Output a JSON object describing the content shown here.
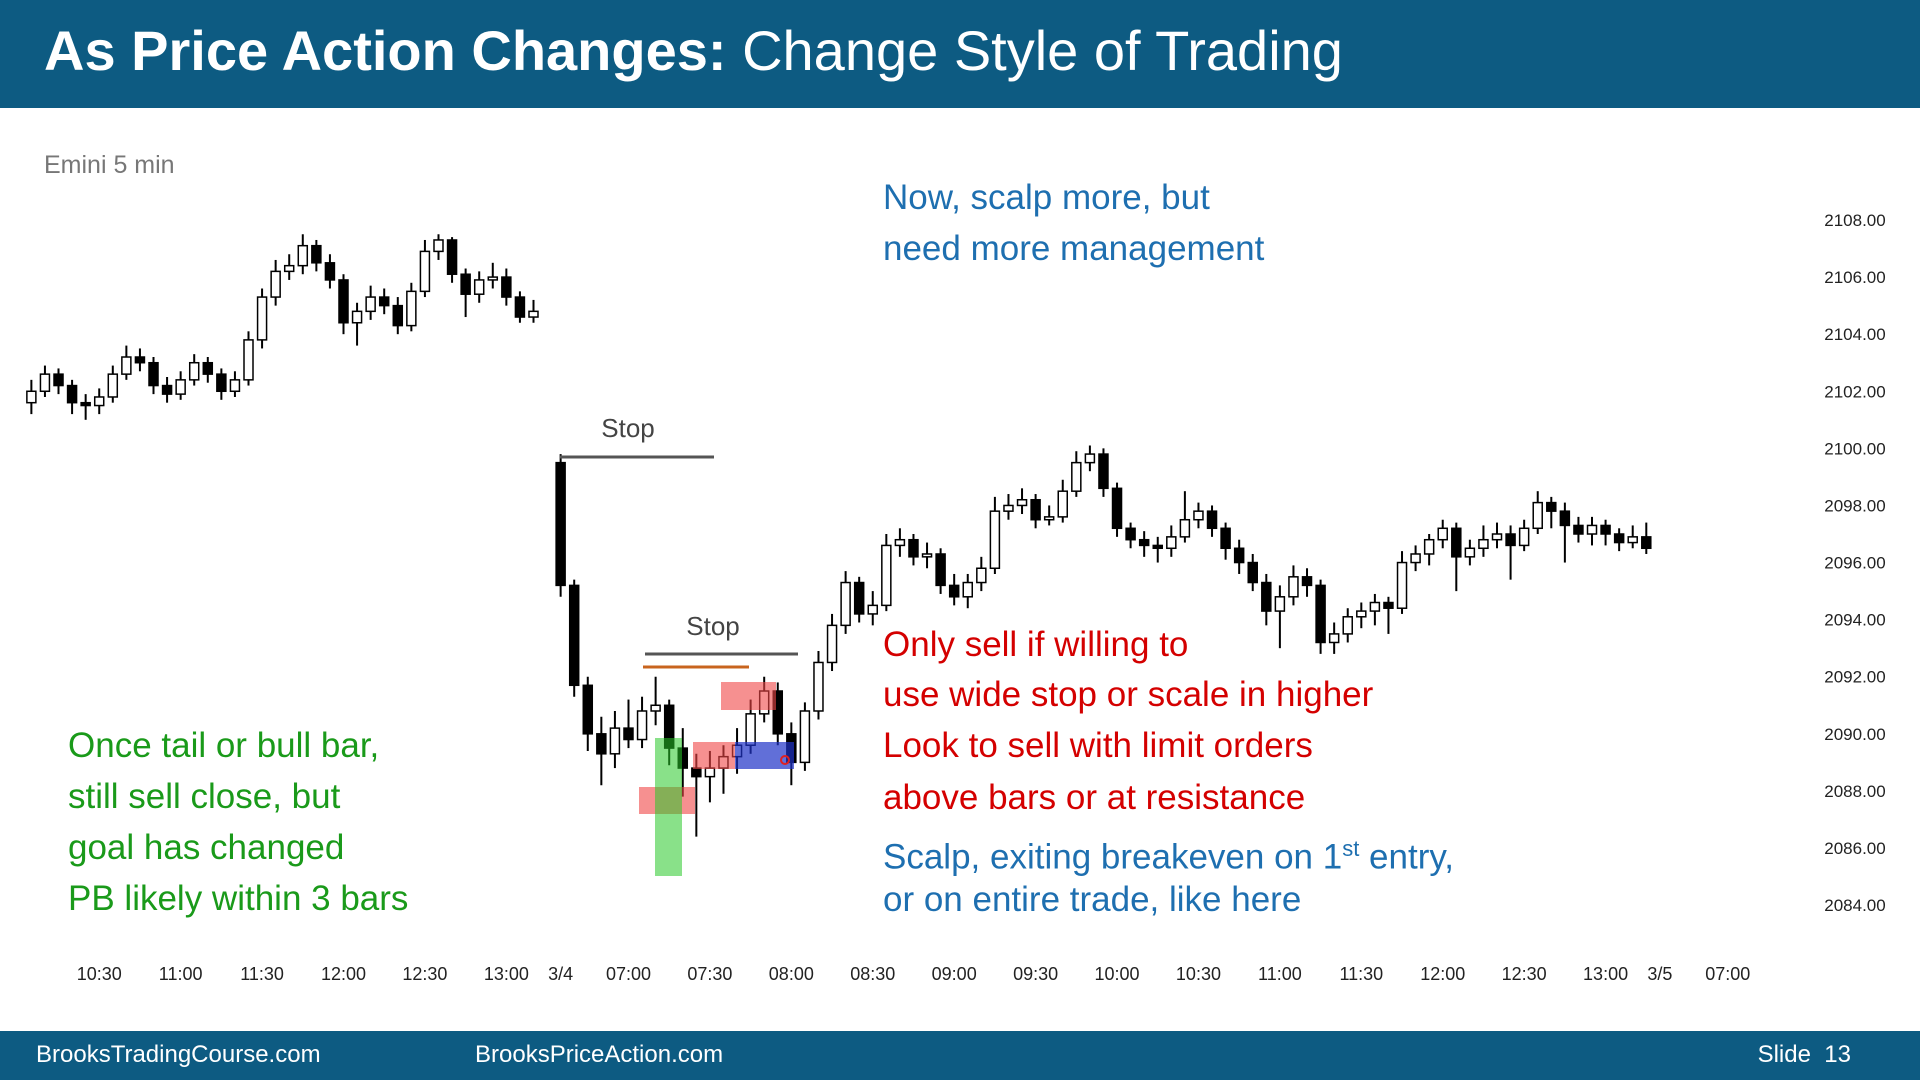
{
  "header": {
    "title_bold": "As Price Action Changes:",
    "title_rest": "Change Style of Trading"
  },
  "chart_data": {
    "type": "candlestick",
    "subtitle": "Emini 5 min",
    "x": [
      -5,
      -4,
      -3,
      -2,
      -1,
      0,
      1,
      2,
      3,
      4,
      5,
      6,
      7,
      8,
      9,
      10,
      11,
      12,
      13,
      14,
      15,
      16,
      17,
      18,
      19,
      20,
      21,
      22,
      23,
      24,
      25,
      26,
      27,
      28,
      29,
      30,
      31,
      32,
      34,
      35,
      36,
      37,
      38,
      39,
      40,
      41,
      42,
      43,
      44,
      45,
      46,
      47,
      48,
      49,
      50,
      51,
      52,
      53,
      54,
      55,
      56,
      57,
      58,
      59,
      60,
      61,
      62,
      63,
      64,
      65,
      66,
      67,
      68,
      69,
      70,
      71,
      72,
      73,
      74,
      75,
      76,
      77,
      78,
      79,
      80,
      81,
      82,
      83,
      84,
      85,
      86,
      87,
      88,
      89,
      90,
      91,
      92,
      93,
      94,
      95,
      96,
      97,
      98,
      99,
      100,
      101,
      102,
      103,
      104,
      105,
      106,
      107,
      108,
      109,
      110,
      111,
      112,
      113,
      114
    ],
    "candles": [
      [
        2101.6,
        2102.4,
        2101.2,
        2102.0
      ],
      [
        2102.0,
        2102.9,
        2101.8,
        2102.6
      ],
      [
        2102.6,
        2102.8,
        2101.9,
        2102.2
      ],
      [
        2102.2,
        2102.4,
        2101.2,
        2101.6
      ],
      [
        2101.6,
        2101.9,
        2101.0,
        2101.5
      ],
      [
        2101.5,
        2102.1,
        2101.2,
        2101.8
      ],
      [
        2101.8,
        2102.9,
        2101.6,
        2102.6
      ],
      [
        2102.6,
        2103.6,
        2102.4,
        2103.2
      ],
      [
        2103.2,
        2103.5,
        2102.7,
        2103.0
      ],
      [
        2103.0,
        2103.2,
        2101.9,
        2102.2
      ],
      [
        2102.2,
        2102.5,
        2101.6,
        2101.9
      ],
      [
        2101.9,
        2102.7,
        2101.7,
        2102.4
      ],
      [
        2102.4,
        2103.3,
        2102.2,
        2103.0
      ],
      [
        2103.0,
        2103.2,
        2102.3,
        2102.6
      ],
      [
        2102.6,
        2102.8,
        2101.7,
        2102.0
      ],
      [
        2102.0,
        2102.7,
        2101.8,
        2102.4
      ],
      [
        2102.4,
        2104.1,
        2102.2,
        2103.8
      ],
      [
        2103.8,
        2105.6,
        2103.5,
        2105.3
      ],
      [
        2105.3,
        2106.6,
        2105.0,
        2106.2
      ],
      [
        2106.2,
        2106.8,
        2105.9,
        2106.4
      ],
      [
        2106.4,
        2107.5,
        2106.1,
        2107.1
      ],
      [
        2107.1,
        2107.3,
        2106.2,
        2106.5
      ],
      [
        2106.5,
        2106.8,
        2105.6,
        2105.9
      ],
      [
        2105.9,
        2106.1,
        2104.0,
        2104.4
      ],
      [
        2104.4,
        2105.1,
        2103.6,
        2104.8
      ],
      [
        2104.8,
        2105.7,
        2104.5,
        2105.3
      ],
      [
        2105.3,
        2105.6,
        2104.7,
        2105.0
      ],
      [
        2105.0,
        2105.3,
        2104.0,
        2104.3
      ],
      [
        2104.3,
        2105.8,
        2104.1,
        2105.5
      ],
      [
        2105.5,
        2107.3,
        2105.3,
        2106.9
      ],
      [
        2106.9,
        2107.5,
        2106.6,
        2107.3
      ],
      [
        2107.3,
        2107.4,
        2105.8,
        2106.1
      ],
      [
        2106.1,
        2106.3,
        2104.6,
        2105.4
      ],
      [
        2105.4,
        2106.2,
        2105.1,
        2105.9
      ],
      [
        2105.9,
        2106.5,
        2105.6,
        2106.0
      ],
      [
        2106.0,
        2106.3,
        2105.0,
        2105.3
      ],
      [
        2105.3,
        2105.5,
        2104.4,
        2104.6
      ],
      [
        2104.6,
        2105.2,
        2104.4,
        2104.8
      ],
      [
        2099.5,
        2099.8,
        2094.8,
        2095.2
      ],
      [
        2095.2,
        2095.4,
        2091.3,
        2091.7
      ],
      [
        2091.7,
        2092.0,
        2089.4,
        2090.0
      ],
      [
        2090.0,
        2090.6,
        2088.2,
        2089.3
      ],
      [
        2089.3,
        2090.8,
        2088.8,
        2090.2
      ],
      [
        2090.2,
        2091.2,
        2089.5,
        2089.8
      ],
      [
        2089.8,
        2091.3,
        2089.5,
        2090.8
      ],
      [
        2090.8,
        2092.0,
        2090.3,
        2091.0
      ],
      [
        2091.0,
        2091.2,
        2088.9,
        2089.5
      ],
      [
        2089.5,
        2090.2,
        2087.8,
        2088.8
      ],
      [
        2088.8,
        2089.3,
        2086.4,
        2088.5
      ],
      [
        2088.5,
        2089.4,
        2087.6,
        2088.8
      ],
      [
        2088.8,
        2089.6,
        2087.9,
        2089.2
      ],
      [
        2089.2,
        2090.2,
        2088.6,
        2089.6
      ],
      [
        2089.6,
        2091.2,
        2089.3,
        2090.7
      ],
      [
        2090.7,
        2092.0,
        2090.4,
        2091.5
      ],
      [
        2091.5,
        2091.8,
        2089.6,
        2090.0
      ],
      [
        2090.0,
        2090.4,
        2088.2,
        2089.0
      ],
      [
        2089.0,
        2091.1,
        2088.7,
        2090.8
      ],
      [
        2090.8,
        2092.9,
        2090.5,
        2092.5
      ],
      [
        2092.5,
        2094.2,
        2092.2,
        2093.8
      ],
      [
        2093.8,
        2095.7,
        2093.5,
        2095.3
      ],
      [
        2095.3,
        2095.5,
        2093.9,
        2094.2
      ],
      [
        2094.2,
        2095.0,
        2093.8,
        2094.5
      ],
      [
        2094.5,
        2097.0,
        2094.3,
        2096.6
      ],
      [
        2096.6,
        2097.2,
        2096.2,
        2096.8
      ],
      [
        2096.8,
        2097.0,
        2095.9,
        2096.2
      ],
      [
        2096.2,
        2096.7,
        2095.8,
        2096.3
      ],
      [
        2096.3,
        2096.5,
        2094.9,
        2095.2
      ],
      [
        2095.2,
        2095.6,
        2094.5,
        2094.8
      ],
      [
        2094.8,
        2095.6,
        2094.4,
        2095.3
      ],
      [
        2095.3,
        2096.2,
        2095.0,
        2095.8
      ],
      [
        2095.8,
        2098.3,
        2095.6,
        2097.8
      ],
      [
        2097.8,
        2098.4,
        2097.5,
        2098.0
      ],
      [
        2098.0,
        2098.6,
        2097.7,
        2098.2
      ],
      [
        2098.2,
        2098.4,
        2097.2,
        2097.5
      ],
      [
        2097.5,
        2098.0,
        2097.3,
        2097.6
      ],
      [
        2097.6,
        2098.9,
        2097.4,
        2098.5
      ],
      [
        2098.5,
        2099.9,
        2098.3,
        2099.5
      ],
      [
        2099.5,
        2100.1,
        2099.2,
        2099.8
      ],
      [
        2099.8,
        2100.0,
        2098.3,
        2098.6
      ],
      [
        2098.6,
        2098.8,
        2096.9,
        2097.2
      ],
      [
        2097.2,
        2097.4,
        2096.5,
        2096.8
      ],
      [
        2096.8,
        2097.1,
        2096.2,
        2096.6
      ],
      [
        2096.6,
        2096.9,
        2096.0,
        2096.5
      ],
      [
        2096.5,
        2097.3,
        2096.2,
        2096.9
      ],
      [
        2096.9,
        2098.5,
        2096.7,
        2097.5
      ],
      [
        2097.5,
        2098.1,
        2097.2,
        2097.8
      ],
      [
        2097.8,
        2098.0,
        2096.9,
        2097.2
      ],
      [
        2097.2,
        2097.4,
        2096.1,
        2096.5
      ],
      [
        2096.5,
        2096.8,
        2095.6,
        2096.0
      ],
      [
        2096.0,
        2096.3,
        2095.0,
        2095.3
      ],
      [
        2095.3,
        2095.6,
        2093.8,
        2094.3
      ],
      [
        2094.3,
        2095.2,
        2093.0,
        2094.8
      ],
      [
        2094.8,
        2095.9,
        2094.5,
        2095.5
      ],
      [
        2095.5,
        2095.8,
        2094.8,
        2095.2
      ],
      [
        2095.2,
        2095.4,
        2092.8,
        2093.2
      ],
      [
        2093.2,
        2093.9,
        2092.8,
        2093.5
      ],
      [
        2093.5,
        2094.4,
        2093.2,
        2094.1
      ],
      [
        2094.1,
        2094.6,
        2093.7,
        2094.3
      ],
      [
        2094.3,
        2094.9,
        2093.8,
        2094.6
      ],
      [
        2094.6,
        2094.8,
        2093.5,
        2094.4
      ],
      [
        2094.4,
        2096.4,
        2094.2,
        2096.0
      ],
      [
        2096.0,
        2096.6,
        2095.7,
        2096.3
      ],
      [
        2096.3,
        2097.0,
        2095.9,
        2096.8
      ],
      [
        2096.8,
        2097.5,
        2096.5,
        2097.2
      ],
      [
        2097.2,
        2097.4,
        2095.0,
        2096.2
      ],
      [
        2096.2,
        2096.8,
        2095.9,
        2096.5
      ],
      [
        2096.5,
        2097.3,
        2096.2,
        2096.8
      ],
      [
        2096.8,
        2097.4,
        2096.5,
        2097.0
      ],
      [
        2097.0,
        2097.3,
        2095.4,
        2096.6
      ],
      [
        2096.6,
        2097.5,
        2096.4,
        2097.2
      ],
      [
        2097.2,
        2098.5,
        2097.0,
        2098.1
      ],
      [
        2098.1,
        2098.3,
        2097.2,
        2097.8
      ],
      [
        2097.8,
        2098.1,
        2096.0,
        2097.3
      ],
      [
        2097.3,
        2097.6,
        2096.7,
        2097.0
      ],
      [
        2097.0,
        2097.6,
        2096.6,
        2097.3
      ],
      [
        2097.3,
        2097.5,
        2096.6,
        2097.0
      ],
      [
        2097.0,
        2097.2,
        2096.4,
        2096.7
      ],
      [
        2096.7,
        2097.3,
        2096.5,
        2096.9
      ],
      [
        2096.9,
        2097.4,
        2096.3,
        2096.5
      ]
    ],
    "up_color": "#ffffff",
    "down_color": "#000000",
    "xlim": [
      -6,
      124
    ],
    "ylim": [
      2082,
      2112
    ],
    "yticks": [
      {
        "value": 2084,
        "label": "2084.00"
      },
      {
        "value": 2086,
        "label": "2086.00"
      },
      {
        "value": 2088,
        "label": "2088.00"
      },
      {
        "value": 2090,
        "label": "2090.00"
      },
      {
        "value": 2092,
        "label": "2092.00"
      },
      {
        "value": 2094,
        "label": "2094.00"
      },
      {
        "value": 2096,
        "label": "2096.00"
      },
      {
        "value": 2098,
        "label": "2098.00"
      },
      {
        "value": 2100,
        "label": "2100.00"
      },
      {
        "value": 2102,
        "label": "2102.00"
      },
      {
        "value": 2104,
        "label": "2104.00"
      },
      {
        "value": 2106,
        "label": "2106.00"
      },
      {
        "value": 2108,
        "label": "2108.00"
      }
    ],
    "xticks": [
      {
        "value": 0,
        "label": "10:30"
      },
      {
        "value": 6,
        "label": "11:00"
      },
      {
        "value": 12,
        "label": "11:30"
      },
      {
        "value": 18,
        "label": "12:00"
      },
      {
        "value": 24,
        "label": "12:30"
      },
      {
        "value": 30,
        "label": "13:00"
      },
      {
        "value": 34,
        "label": "3/4"
      },
      {
        "value": 39,
        "label": "07:00"
      },
      {
        "value": 45,
        "label": "07:30"
      },
      {
        "value": 51,
        "label": "08:00"
      },
      {
        "value": 57,
        "label": "08:30"
      },
      {
        "value": 63,
        "label": "09:00"
      },
      {
        "value": 69,
        "label": "09:30"
      },
      {
        "value": 75,
        "label": "10:00"
      },
      {
        "value": 81,
        "label": "10:30"
      },
      {
        "value": 87,
        "label": "11:00"
      },
      {
        "value": 93,
        "label": "11:30"
      },
      {
        "value": 99,
        "label": "12:00"
      },
      {
        "value": 105,
        "label": "12:30"
      },
      {
        "value": 111,
        "label": "13:00"
      },
      {
        "value": 115,
        "label": "3/5"
      },
      {
        "value": 120,
        "label": "07:00"
      }
    ],
    "stop_labels": [
      "Stop",
      "Stop"
    ],
    "notes": {
      "blue_top": [
        "Now, scalp more, but",
        "need more management"
      ],
      "red": [
        "Only sell if willing to",
        "use wide stop or scale in higher",
        "Look to sell with limit orders",
        "above bars or at resistance"
      ],
      "blue_bottom": {
        "line1": "Scalp, exiting breakeven on 1",
        "sup": "st",
        "line1_end": " entry,",
        "line2": "or on entire trade, like here"
      },
      "green": [
        "Once tail or bull bar,",
        "still sell close, but",
        "goal has changed",
        "PB likely within 3 bars"
      ]
    }
  },
  "footer": {
    "left": "BrooksTradingCourse.com",
    "middle": "BrooksPriceAction.com",
    "slide": "Slide  13"
  }
}
